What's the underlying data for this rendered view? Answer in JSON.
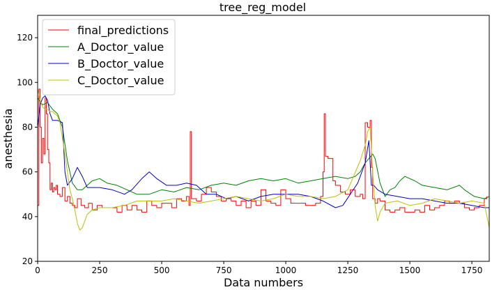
{
  "chart_data": {
    "type": "line",
    "title": "tree_reg_model",
    "xlabel": "Data numbers",
    "ylabel": "anesthesia",
    "xlim": [
      0,
      1820
    ],
    "ylim": [
      20,
      130
    ],
    "xticks": [
      0,
      250,
      500,
      750,
      1000,
      1250,
      1500,
      1750
    ],
    "yticks": [
      20,
      40,
      60,
      80,
      100,
      120
    ],
    "grid": false,
    "legend_position": "top-left",
    "series": [
      {
        "name": "final_predictions",
        "color": "#ff0000",
        "style": "step",
        "x": [
          0,
          5,
          10,
          15,
          20,
          25,
          30,
          35,
          40,
          45,
          50,
          55,
          60,
          65,
          70,
          75,
          80,
          90,
          100,
          110,
          120,
          130,
          140,
          150,
          160,
          175,
          190,
          205,
          220,
          240,
          260,
          280,
          300,
          320,
          340,
          360,
          380,
          400,
          420,
          440,
          460,
          480,
          500,
          520,
          540,
          560,
          580,
          600,
          610,
          615,
          620,
          640,
          660,
          680,
          700,
          720,
          740,
          760,
          780,
          800,
          820,
          840,
          860,
          880,
          900,
          920,
          940,
          960,
          980,
          1000,
          1020,
          1040,
          1060,
          1080,
          1100,
          1120,
          1140,
          1150,
          1155,
          1160,
          1170,
          1190,
          1200,
          1220,
          1240,
          1260,
          1280,
          1300,
          1310,
          1320,
          1330,
          1340,
          1345,
          1350,
          1360,
          1370,
          1380,
          1400,
          1420,
          1440,
          1460,
          1480,
          1500,
          1520,
          1540,
          1560,
          1580,
          1600,
          1620,
          1640,
          1660,
          1680,
          1700,
          1720,
          1740,
          1760,
          1780,
          1800,
          1810
        ],
        "y": [
          45,
          97,
          80,
          64,
          75,
          68,
          93,
          86,
          70,
          64,
          52,
          55,
          51,
          53,
          52,
          54,
          50,
          49,
          53,
          47,
          49,
          46,
          45,
          44,
          48,
          45,
          44,
          46,
          43,
          45,
          44,
          44,
          44,
          42,
          45,
          43,
          45,
          43,
          42,
          47,
          45,
          44,
          46,
          46,
          44,
          48,
          47,
          49,
          45,
          78,
          48,
          47,
          50,
          53,
          51,
          49,
          47,
          48,
          47,
          45,
          47,
          44,
          47,
          45,
          52,
          47,
          46,
          45,
          52,
          48,
          46,
          46,
          46,
          45,
          45,
          46,
          49,
          60,
          86,
          67,
          66,
          56,
          54,
          51,
          50,
          52,
          49,
          50,
          48,
          82,
          80,
          83,
          62,
          48,
          46,
          48,
          47,
          43,
          42,
          43,
          44,
          42,
          42,
          43,
          42,
          45,
          43,
          44,
          45,
          47,
          46,
          47,
          46,
          44,
          43,
          44,
          45,
          48,
          49
        ]
      },
      {
        "name": "A_Doctor_value",
        "color": "#008000",
        "style": "line",
        "x": [
          0,
          20,
          40,
          60,
          80,
          100,
          120,
          140,
          160,
          180,
          200,
          220,
          250,
          280,
          320,
          360,
          400,
          450,
          500,
          550,
          600,
          650,
          700,
          750,
          800,
          850,
          900,
          950,
          1000,
          1050,
          1100,
          1150,
          1200,
          1250,
          1280,
          1300,
          1320,
          1335,
          1350,
          1360,
          1380,
          1400,
          1420,
          1440,
          1460,
          1480,
          1500,
          1520,
          1550,
          1600,
          1650,
          1700,
          1720,
          1760,
          1800,
          1820
        ],
        "y": [
          93,
          90,
          91,
          88,
          86,
          80,
          65,
          55,
          52,
          52,
          54,
          56,
          57,
          55,
          54,
          52,
          50,
          50,
          52,
          51,
          53,
          52,
          54,
          55,
          54,
          56,
          57,
          56,
          57,
          55,
          56,
          57,
          58,
          57,
          58,
          60,
          64,
          66,
          68,
          66,
          55,
          49,
          52,
          53,
          56,
          58,
          57,
          56,
          54,
          53,
          52,
          54,
          52,
          49,
          48,
          49
        ]
      },
      {
        "name": "B_Doctor_value",
        "color": "#0000cc",
        "style": "line",
        "x": [
          0,
          10,
          20,
          30,
          40,
          50,
          60,
          80,
          100,
          110,
          120,
          140,
          160,
          180,
          200,
          220,
          250,
          300,
          350,
          380,
          420,
          450,
          480,
          520,
          560,
          600,
          640,
          680,
          720,
          760,
          800,
          850,
          900,
          950,
          1000,
          1050,
          1100,
          1150,
          1200,
          1230,
          1260,
          1290,
          1320,
          1335,
          1345,
          1355,
          1370,
          1400,
          1450,
          1500,
          1550,
          1600,
          1650,
          1700,
          1750,
          1800,
          1820
        ],
        "y": [
          80,
          90,
          93,
          94,
          92,
          86,
          83,
          83,
          82,
          60,
          54,
          57,
          62,
          58,
          53,
          53,
          53,
          52,
          50,
          52,
          57,
          60,
          57,
          54,
          54,
          55,
          54,
          50,
          50,
          48,
          49,
          47,
          49,
          50,
          50,
          50,
          49,
          47,
          44,
          45,
          50,
          55,
          64,
          74,
          54,
          54,
          52,
          50,
          49,
          48,
          48,
          47,
          46,
          46,
          45,
          44,
          44
        ]
      },
      {
        "name": "C_Doctor_value",
        "color": "#bfbf00",
        "style": "line",
        "x": [
          0,
          10,
          20,
          30,
          40,
          50,
          60,
          70,
          80,
          90,
          100,
          110,
          120,
          130,
          140,
          150,
          160,
          170,
          180,
          190,
          200,
          220,
          250,
          280,
          300,
          350,
          400,
          450,
          500,
          550,
          600,
          650,
          700,
          750,
          800,
          850,
          900,
          950,
          1000,
          1050,
          1100,
          1150,
          1200,
          1250,
          1300,
          1320,
          1330,
          1340,
          1350,
          1360,
          1370,
          1380,
          1400,
          1450,
          1500,
          1550,
          1600,
          1650,
          1700,
          1750,
          1800,
          1820
        ],
        "y": [
          97,
          92,
          89,
          88,
          88,
          87,
          87,
          86,
          85,
          82,
          75,
          68,
          60,
          52,
          48,
          43,
          37,
          34,
          35,
          38,
          41,
          43,
          44,
          44,
          44,
          45,
          47,
          47,
          47,
          48,
          47,
          46,
          47,
          48,
          49,
          48,
          47,
          48,
          50,
          49,
          49,
          48,
          49,
          52,
          65,
          72,
          78,
          80,
          60,
          45,
          38,
          42,
          46,
          47,
          45,
          46,
          48,
          47,
          46,
          47,
          46,
          35
        ]
      }
    ]
  }
}
